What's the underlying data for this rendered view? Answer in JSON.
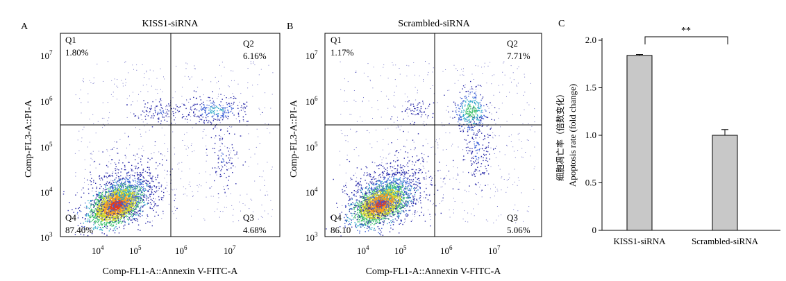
{
  "chart_data": [
    {
      "type": "scatter",
      "panel_label": "A",
      "title": "KISS1-siRNA",
      "xlabel": "Comp-FL1-A::Annexin V-FITC-A",
      "ylabel": "Comp-FL3-A::PI-A",
      "scale": "log",
      "xlim": [
        1000,
        30000000
      ],
      "ylim": [
        1000,
        30000000
      ],
      "x_ticks": [
        {
          "base": "10",
          "exp": "4"
        },
        {
          "base": "10",
          "exp": "5"
        },
        {
          "base": "10",
          "exp": "6"
        },
        {
          "base": "10",
          "exp": "7"
        }
      ],
      "y_ticks": [
        {
          "base": "10",
          "exp": "3"
        },
        {
          "base": "10",
          "exp": "4"
        },
        {
          "base": "10",
          "exp": "5"
        },
        {
          "base": "10",
          "exp": "6"
        },
        {
          "base": "10",
          "exp": "7"
        }
      ],
      "gate": {
        "x": 400000,
        "y": 300000
      },
      "quadrants": [
        {
          "name": "Q1",
          "value": "1.80%",
          "position": "top-left"
        },
        {
          "name": "Q2",
          "value": "6.16%",
          "position": "top-right"
        },
        {
          "name": "Q3",
          "value": "4.68%",
          "position": "bottom-right"
        },
        {
          "name": "Q4",
          "value": "87.40%",
          "position": "bottom-left"
        }
      ]
    },
    {
      "type": "scatter",
      "panel_label": "B",
      "title": "Scrambled-siRNA",
      "xlabel": "Comp-FL1-A::Annexin V-FITC-A",
      "ylabel": "Comp-FL3-A::PI-A",
      "scale": "log",
      "xlim": [
        1000,
        30000000
      ],
      "ylim": [
        1000,
        30000000
      ],
      "x_ticks": [
        {
          "base": "10",
          "exp": "4"
        },
        {
          "base": "10",
          "exp": "5"
        },
        {
          "base": "10",
          "exp": "6"
        },
        {
          "base": "10",
          "exp": "7"
        }
      ],
      "y_ticks": [
        {
          "base": "10",
          "exp": "3"
        },
        {
          "base": "10",
          "exp": "4"
        },
        {
          "base": "10",
          "exp": "5"
        },
        {
          "base": "10",
          "exp": "6"
        },
        {
          "base": "10",
          "exp": "7"
        }
      ],
      "gate": {
        "x": 400000,
        "y": 300000
      },
      "quadrants": [
        {
          "name": "Q1",
          "value": "1.17%",
          "position": "top-left"
        },
        {
          "name": "Q2",
          "value": "7.71%",
          "position": "top-right"
        },
        {
          "name": "Q3",
          "value": "5.06%",
          "position": "bottom-right"
        },
        {
          "name": "Q4",
          "value": "86.10",
          "position": "bottom-left"
        }
      ]
    },
    {
      "type": "bar",
      "panel_label": "C",
      "categories": [
        "KISS1-siRNA",
        "Scrambled-siRNA"
      ],
      "values": [
        1.84,
        1.0
      ],
      "errors": [
        0.01,
        0.06
      ],
      "ylabel_cn": "细胞凋亡率（倍数变化）",
      "ylabel": "Apoptosis rate (fold change)",
      "ylim": [
        0,
        2.0
      ],
      "y_ticks": [
        "0",
        "0.5",
        "1.0",
        "1.5",
        "2.0"
      ],
      "bar_color": "#c8c8c8",
      "significance": "**"
    }
  ]
}
